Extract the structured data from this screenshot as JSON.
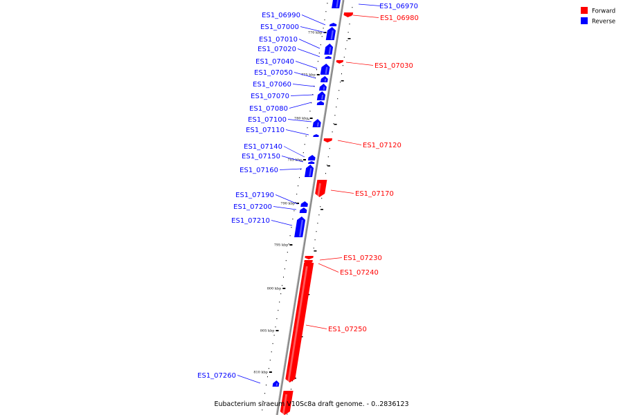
{
  "caption": "Eubacterium siraeum V10Sc8a draft genome. - 0..2836123",
  "legend": [
    {
      "label": "Forward",
      "color": "#ff0000"
    },
    {
      "label": "Reverse",
      "color": "#0000ff"
    }
  ],
  "colors": {
    "forward": "#ff0000",
    "reverse": "#0000ff",
    "backbone": "#808080"
  },
  "ticks": [
    "770 kbp",
    "775 kbp",
    "780 kbp",
    "785 kbp",
    "790 kbp",
    "795 kbp",
    "800 kbp",
    "805 kbp",
    "810 kbp"
  ],
  "reverse_genes": [
    "ES1_06970",
    "ES1_06990",
    "ES1_07000",
    "ES1_07010",
    "ES1_07020",
    "ES1_07040",
    "ES1_07050",
    "ES1_07060",
    "ES1_07070",
    "ES1_07080",
    "ES1_07100",
    "ES1_07110",
    "ES1_07140",
    "ES1_07150",
    "ES1_07160",
    "ES1_07190",
    "ES1_07200",
    "ES1_07210",
    "ES1_07260"
  ],
  "forward_genes": [
    "ES1_06980",
    "ES1_07030",
    "ES1_07120",
    "ES1_07170",
    "ES1_07230",
    "ES1_07240",
    "ES1_07250"
  ]
}
